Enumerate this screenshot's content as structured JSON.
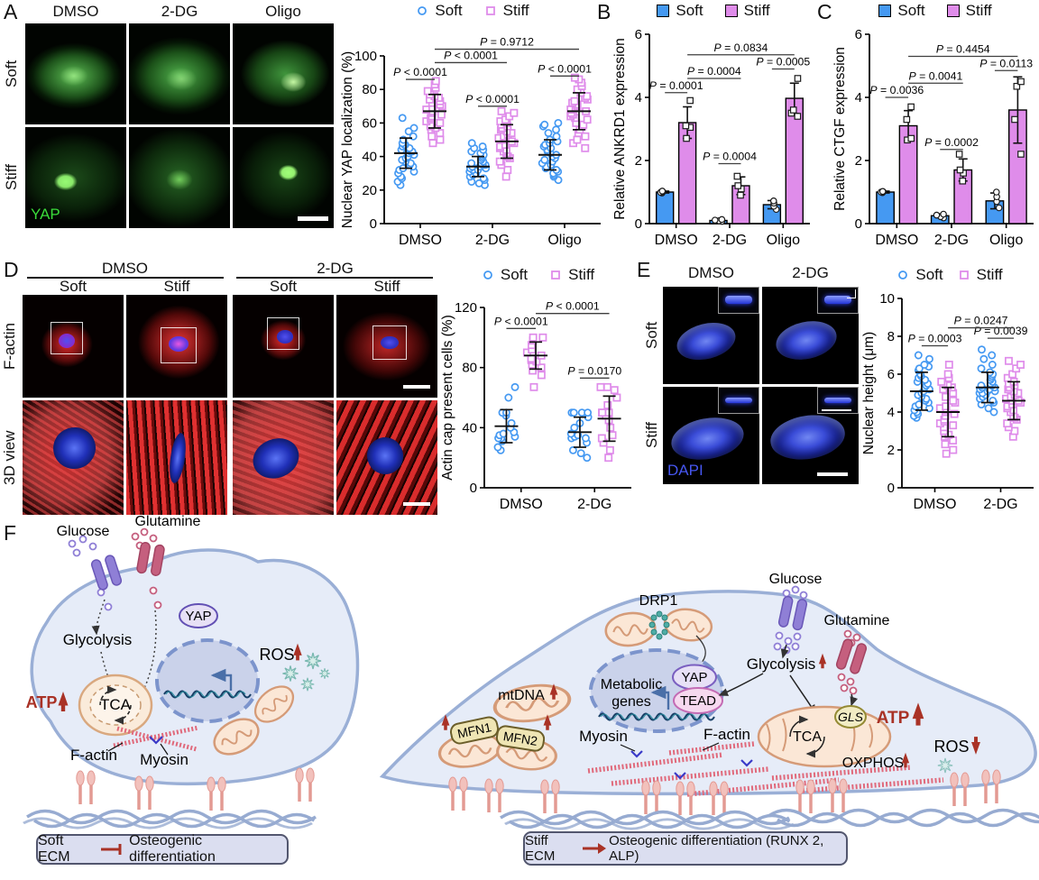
{
  "colors": {
    "soft": "#4599F2",
    "stiff": "#DF8CEA",
    "accent_red": "#A93226",
    "yap_green": "#3ADB3A",
    "dapi_blue": "#4656F0"
  },
  "legend": {
    "soft": "Soft",
    "stiff": "Stiff"
  },
  "panels": {
    "A": {
      "label": "A",
      "columns": [
        "DMSO",
        "2-DG",
        "Oligo"
      ],
      "rows": [
        "Soft",
        "Stiff"
      ],
      "stain": "YAP"
    },
    "B": {
      "label": "B"
    },
    "C": {
      "label": "C"
    },
    "D": {
      "label": "D",
      "groups": [
        "DMSO",
        "2-DG"
      ],
      "columns": [
        "Soft",
        "Stiff",
        "Soft",
        "Stiff"
      ],
      "rows": [
        "F-actin",
        "3D view"
      ]
    },
    "E": {
      "label": "E",
      "columns": [
        "DMSO",
        "2-DG"
      ],
      "rows": [
        "Soft",
        "Stiff"
      ],
      "stain": "DAPI"
    },
    "F": {
      "label": "F",
      "left": {
        "glucose": "Glucose",
        "glutamine": "Glutamine",
        "glycolysis": "Glycolysis",
        "yap": "YAP",
        "tca": "TCA",
        "atp": "ATP",
        "ros": "ROS",
        "factin": "F-actin",
        "myosin": "Myosin",
        "conclusion": {
          "subject": "Soft ECM",
          "object": "Osteogenic differentiation"
        }
      },
      "right": {
        "drp1": "DRP1",
        "mtdna": "mtDNA",
        "mfn1": "MFN1",
        "mfn2": "MFN2",
        "metabolic_line1": "Metabolic",
        "metabolic_line2": "genes",
        "yap": "YAP",
        "tead": "TEAD",
        "myosin": "Myosin",
        "factin": "F-actin",
        "glucose": "Glucose",
        "glutamine": "Glutamine",
        "glycolysis": "Glycolysis",
        "gls": "GLS",
        "tca": "TCA",
        "oxphos": "OXPHOS",
        "atp": "ATP",
        "ros": "ROS",
        "conclusion": {
          "subject": "Stiff ECM",
          "object": "Osteogenic differentiation (RUNX 2, ALP)"
        }
      }
    }
  },
  "chart_data": [
    {
      "id": "A",
      "type": "scatter",
      "ylabel": "Nuclear YAP localization (%)",
      "ylim": [
        0,
        100
      ],
      "yticks": [
        0,
        20,
        40,
        60,
        80,
        100
      ],
      "categories": [
        "DMSO",
        "2-DG",
        "Oligo"
      ],
      "series": [
        {
          "name": "Soft",
          "marker": "circle",
          "color": "soft",
          "mean": [
            42,
            34,
            41
          ],
          "sd": [
            9,
            6,
            9
          ],
          "values": [
            [
              23,
              25,
              27,
              28,
              30,
              31,
              32,
              33,
              34,
              35,
              36,
              37,
              38,
              39,
              40,
              41,
              42,
              43,
              43,
              44,
              45,
              46,
              47,
              47,
              48,
              50,
              52,
              55,
              57,
              63
            ],
            [
              23,
              24,
              25,
              26,
              27,
              28,
              29,
              30,
              31,
              32,
              32,
              33,
              33,
              34,
              34,
              35,
              35,
              36,
              36,
              37,
              38,
              39,
              40,
              41,
              42,
              43,
              44,
              45,
              46,
              48
            ],
            [
              26,
              28,
              29,
              30,
              31,
              32,
              33,
              34,
              35,
              36,
              37,
              38,
              39,
              40,
              41,
              42,
              43,
              44,
              45,
              46,
              47,
              48,
              49,
              50,
              52,
              54,
              56,
              58,
              59,
              60
            ]
          ]
        },
        {
          "name": "Stiff",
          "marker": "square",
          "color": "stiff",
          "mean": [
            67,
            49,
            67
          ],
          "sd": [
            10,
            10,
            11
          ],
          "values": [
            [
              48,
              50,
              52,
              54,
              56,
              57,
              58,
              59,
              60,
              61,
              62,
              63,
              64,
              65,
              66,
              67,
              68,
              69,
              70,
              71,
              72,
              73,
              74,
              75,
              76,
              77,
              79,
              81,
              83,
              85
            ],
            [
              28,
              32,
              35,
              37,
              39,
              40,
              42,
              43,
              44,
              45,
              46,
              47,
              48,
              49,
              50,
              51,
              52,
              53,
              54,
              55,
              56,
              57,
              58,
              59,
              60,
              61,
              62,
              64,
              66,
              67
            ],
            [
              45,
              48,
              50,
              52,
              54,
              56,
              58,
              59,
              60,
              62,
              63,
              64,
              65,
              66,
              67,
              68,
              69,
              70,
              71,
              72,
              73,
              74,
              75,
              76,
              78,
              80,
              82,
              84,
              86,
              87
            ]
          ]
        }
      ],
      "comparisons": [
        {
          "label": "P < 0.0001",
          "from": [
            0,
            0
          ],
          "to": [
            0,
            1
          ],
          "y": 86
        },
        {
          "label": "P < 0.0001",
          "from": [
            1,
            0
          ],
          "to": [
            1,
            1
          ],
          "y": 70
        },
        {
          "label": "P < 0.0001",
          "from": [
            2,
            0
          ],
          "to": [
            2,
            1
          ],
          "y": 88
        },
        {
          "label": "P < 0.0001",
          "from": [
            0,
            1
          ],
          "to": [
            1,
            1
          ],
          "y": 96
        },
        {
          "label": "P = 0.9712",
          "from": [
            0,
            1
          ],
          "to": [
            2,
            1
          ],
          "y": 104
        }
      ]
    },
    {
      "id": "B",
      "type": "bar",
      "ylabel": "Relative ANKRD1 expression",
      "ylim": [
        0,
        6
      ],
      "yticks": [
        0,
        2,
        4,
        6
      ],
      "categories": [
        "DMSO",
        "2-DG",
        "Oligo"
      ],
      "series": [
        {
          "name": "Soft",
          "marker": "circle",
          "color": "soft",
          "mean": [
            1.0,
            0.1,
            0.6
          ],
          "sd": [
            0.03,
            0.03,
            0.13
          ],
          "values": [
            [
              0.97,
              0.99,
              1.01,
              1.03
            ],
            [
              0.07,
              0.09,
              0.11,
              0.13
            ],
            [
              0.45,
              0.55,
              0.65,
              0.72
            ]
          ]
        },
        {
          "name": "Stiff",
          "marker": "square",
          "color": "stiff",
          "mean": [
            3.2,
            1.2,
            3.97
          ],
          "sd": [
            0.5,
            0.28,
            0.48
          ],
          "values": [
            [
              2.7,
              3.05,
              3.1,
              3.9
            ],
            [
              0.9,
              1.1,
              1.2,
              1.5
            ],
            [
              3.4,
              3.5,
              3.6,
              4.6
            ]
          ]
        }
      ],
      "comparisons": [
        {
          "label": "P = 0.0001",
          "from": [
            0,
            0
          ],
          "to": [
            0,
            1
          ],
          "y": 4.15
        },
        {
          "label": "P = 0.0004",
          "from": [
            1,
            0
          ],
          "to": [
            1,
            1
          ],
          "y": 1.9
        },
        {
          "label": "P = 0.0005",
          "from": [
            2,
            0
          ],
          "to": [
            2,
            1
          ],
          "y": 4.9
        },
        {
          "label": "P = 0.0004",
          "from": [
            0,
            1
          ],
          "to": [
            1,
            1
          ],
          "y": 4.6
        },
        {
          "label": "P = 0.0834",
          "from": [
            0,
            1
          ],
          "to": [
            2,
            1
          ],
          "y": 5.35
        }
      ]
    },
    {
      "id": "C",
      "type": "bar",
      "ylabel": "Relative CTGF expression",
      "ylim": [
        0,
        6
      ],
      "yticks": [
        0,
        2,
        4,
        6
      ],
      "categories": [
        "DMSO",
        "2-DG",
        "Oligo"
      ],
      "series": [
        {
          "name": "Soft",
          "marker": "circle",
          "color": "soft",
          "mean": [
            1.0,
            0.25,
            0.72
          ],
          "sd": [
            0.03,
            0.06,
            0.25
          ],
          "values": [
            [
              0.98,
              1.0,
              1.01,
              1.02
            ],
            [
              0.18,
              0.22,
              0.27,
              0.3
            ],
            [
              0.5,
              0.7,
              0.85,
              1.0
            ]
          ]
        },
        {
          "name": "Stiff",
          "marker": "square",
          "color": "stiff",
          "mean": [
            3.1,
            1.7,
            3.6
          ],
          "sd": [
            0.48,
            0.35,
            1.05
          ],
          "values": [
            [
              2.65,
              2.7,
              3.3,
              3.7
            ],
            [
              1.35,
              1.6,
              1.7,
              2.2
            ],
            [
              2.2,
              3.3,
              4.35,
              4.5
            ]
          ]
        }
      ],
      "comparisons": [
        {
          "label": "P = 0.0036",
          "from": [
            0,
            0
          ],
          "to": [
            0,
            1
          ],
          "y": 4.0
        },
        {
          "label": "P = 0.0002",
          "from": [
            1,
            0
          ],
          "to": [
            1,
            1
          ],
          "y": 2.35
        },
        {
          "label": "P = 0.0113",
          "from": [
            2,
            0
          ],
          "to": [
            2,
            1
          ],
          "y": 4.85
        },
        {
          "label": "P = 0.0041",
          "from": [
            0,
            1
          ],
          "to": [
            1,
            1
          ],
          "y": 4.45
        },
        {
          "label": "P = 0.4454",
          "from": [
            0,
            1
          ],
          "to": [
            2,
            1
          ],
          "y": 5.3
        }
      ]
    },
    {
      "id": "D",
      "type": "scatter",
      "ylabel": "Actin cap present cells (%)",
      "ylim": [
        0,
        120
      ],
      "yticks": [
        0,
        40,
        80,
        120
      ],
      "categories": [
        "DMSO",
        "2-DG"
      ],
      "series": [
        {
          "name": "Soft",
          "marker": "circle",
          "color": "soft",
          "mean": [
            41,
            37
          ],
          "sd": [
            11,
            10
          ],
          "values": [
            [
              25,
              27,
              31,
              33,
              33,
              34,
              35,
              36,
              37,
              40,
              43,
              48,
              50,
              50,
              60,
              67
            ],
            [
              20,
              23,
              25,
              30,
              33,
              33,
              34,
              35,
              36,
              40,
              43,
              47,
              50,
              50,
              50,
              50
            ]
          ]
        },
        {
          "name": "Stiff",
          "marker": "square",
          "color": "stiff",
          "mean": [
            88,
            46
          ],
          "sd": [
            9,
            15
          ],
          "values": [
            [
              67,
              75,
              78,
              80,
              82,
              84,
              85,
              86,
              88,
              90,
              92,
              95,
              98,
              100,
              100
            ],
            [
              20,
              25,
              30,
              33,
              35,
              40,
              45,
              48,
              50,
              50,
              50,
              55,
              60,
              65,
              67,
              67
            ]
          ]
        }
      ],
      "comparisons": [
        {
          "label": "P < 0.0001",
          "from": [
            0,
            0
          ],
          "to": [
            0,
            1
          ],
          "y": 106
        },
        {
          "label": "P = 0.0170",
          "from": [
            1,
            0
          ],
          "to": [
            1,
            1
          ],
          "y": 73
        },
        {
          "label": "P < 0.0001",
          "from": [
            0,
            1
          ],
          "to": [
            1,
            1
          ],
          "y": 116
        }
      ]
    },
    {
      "id": "E",
      "type": "scatter",
      "ylabel": "Nuclear height (μm)",
      "ylim": [
        0,
        10
      ],
      "yticks": [
        0,
        2,
        4,
        6,
        8,
        10
      ],
      "categories": [
        "DMSO",
        "2-DG"
      ],
      "series": [
        {
          "name": "Soft",
          "marker": "circle",
          "color": "soft",
          "mean": [
            5.1,
            5.3
          ],
          "sd": [
            1.0,
            0.8
          ],
          "values": [
            [
              3.7,
              3.8,
              3.9,
              4.0,
              4.1,
              4.2,
              4.3,
              4.4,
              4.5,
              4.6,
              4.7,
              4.8,
              4.9,
              5.0,
              5.1,
              5.2,
              5.3,
              5.4,
              5.5,
              5.6,
              5.7,
              5.8,
              5.9,
              6.0,
              6.2,
              6.3,
              6.4,
              6.5,
              6.8,
              7.0
            ],
            [
              4.0,
              4.2,
              4.4,
              4.5,
              4.6,
              4.7,
              4.8,
              4.9,
              5.0,
              5.0,
              5.1,
              5.1,
              5.2,
              5.2,
              5.3,
              5.3,
              5.4,
              5.4,
              5.5,
              5.6,
              5.7,
              5.8,
              5.9,
              6.0,
              6.1,
              6.3,
              6.5,
              6.8,
              7.0,
              7.3
            ]
          ]
        },
        {
          "name": "Stiff",
          "marker": "square",
          "color": "stiff",
          "mean": [
            4.0,
            4.6
          ],
          "sd": [
            1.3,
            1.0
          ],
          "values": [
            [
              1.8,
              2.0,
              2.3,
              2.5,
              2.7,
              2.8,
              3.0,
              3.2,
              3.3,
              3.4,
              3.5,
              3.6,
              3.8,
              3.9,
              4.0,
              4.1,
              4.2,
              4.3,
              4.5,
              4.6,
              4.8,
              5.0,
              5.2,
              5.3,
              5.4,
              5.5,
              5.6,
              5.8,
              6.0,
              6.5
            ],
            [
              2.7,
              3.0,
              3.2,
              3.4,
              3.6,
              3.7,
              3.8,
              4.0,
              4.1,
              4.2,
              4.3,
              4.4,
              4.5,
              4.6,
              4.6,
              4.7,
              4.8,
              4.9,
              5.0,
              5.1,
              5.2,
              5.3,
              5.4,
              5.5,
              5.6,
              5.8,
              6.0,
              6.3,
              6.5,
              6.7
            ]
          ]
        }
      ],
      "comparisons": [
        {
          "label": "P = 0.0003",
          "from": [
            0,
            0
          ],
          "to": [
            0,
            1
          ],
          "y": 7.5
        },
        {
          "label": "P = 0.0039",
          "from": [
            1,
            0
          ],
          "to": [
            1,
            1
          ],
          "y": 7.9
        },
        {
          "label": "P = 0.0247",
          "from": [
            0,
            1
          ],
          "to": [
            1,
            1
          ],
          "y": 8.45
        }
      ]
    }
  ]
}
